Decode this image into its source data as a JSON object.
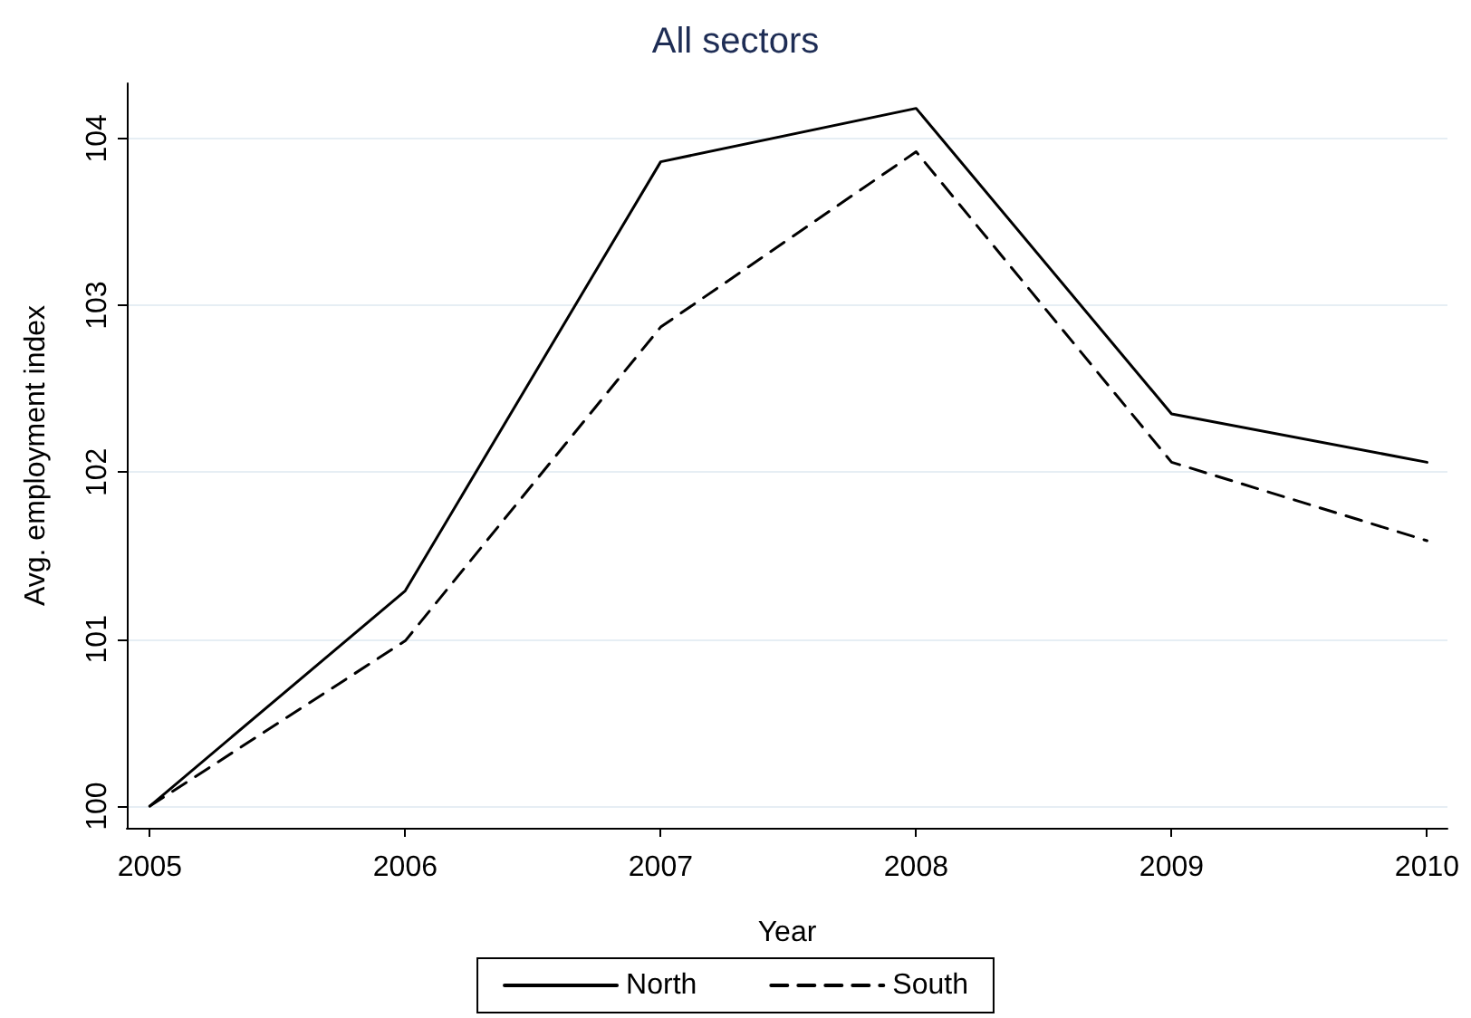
{
  "chart_data": {
    "type": "line",
    "title": "All sectors",
    "xlabel": "Year",
    "ylabel": "Avg. employment index",
    "x": [
      2005,
      2006,
      2007,
      2008,
      2009,
      2010
    ],
    "series": [
      {
        "name": "North",
        "color": "#000000",
        "line_style": "solid",
        "values": [
          100,
          101.29,
          103.86,
          104.18,
          102.35,
          102.06
        ]
      },
      {
        "name": "South",
        "color": "#000000",
        "line_style": "dashed",
        "values": [
          100,
          100.99,
          102.87,
          103.92,
          102.06,
          101.59
        ]
      }
    ],
    "xlim": [
      2004.91,
      2010.08
    ],
    "xticks": [
      2005,
      2006,
      2007,
      2008,
      2009,
      2010
    ],
    "ylim": [
      99.87,
      104.33
    ],
    "yticks": [
      100,
      101,
      102,
      103,
      104
    ],
    "grid": "y",
    "legend": "bottom",
    "marker": "none"
  }
}
